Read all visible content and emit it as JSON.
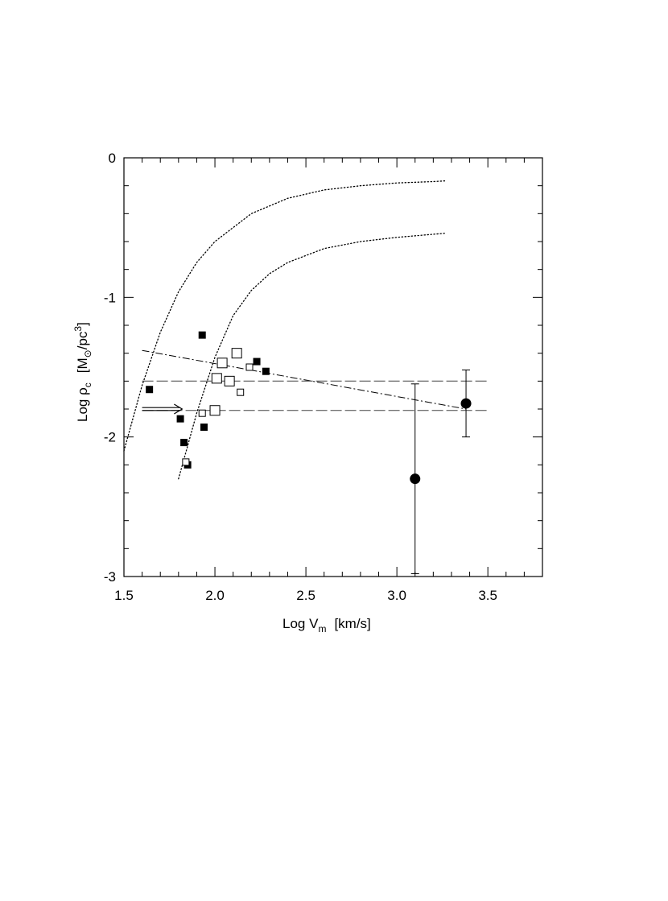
{
  "chart_data": {
    "type": "scatter",
    "title": "",
    "xlabel": {
      "main": "Log V",
      "sub": "m",
      "unit": "[km/s]"
    },
    "ylabel": {
      "main": "Log ρ",
      "sub": "c",
      "unit_open": "[M",
      "unit_sub": "⊙",
      "unit_mid": "/pc",
      "unit_sup": "3",
      "unit_close": "]"
    },
    "xlim": [
      1.5,
      3.8
    ],
    "ylim": [
      -3,
      0
    ],
    "x_ticks": [
      1.5,
      2.0,
      2.5,
      3.0,
      3.5
    ],
    "x_tick_labels": [
      "1.5",
      "2.0",
      "2.5",
      "3.0",
      "3.5"
    ],
    "y_ticks": [
      0,
      -1,
      -2,
      -3
    ],
    "y_tick_labels": [
      "0",
      "-1",
      "-2",
      "-3"
    ],
    "grid": false,
    "series": [
      {
        "marker": "filled-square",
        "points": [
          {
            "x": 1.64,
            "y": -1.66
          },
          {
            "x": 1.81,
            "y": -1.87
          },
          {
            "x": 1.83,
            "y": -2.04
          },
          {
            "x": 1.85,
            "y": -2.2
          },
          {
            "x": 1.93,
            "y": -1.27
          },
          {
            "x": 1.94,
            "y": -1.93
          },
          {
            "x": 2.23,
            "y": -1.46
          },
          {
            "x": 2.28,
            "y": -1.53
          }
        ]
      },
      {
        "marker": "open-square-large",
        "points": [
          {
            "x": 2.01,
            "y": -1.58
          },
          {
            "x": 2.0,
            "y": -1.81
          },
          {
            "x": 2.04,
            "y": -1.47
          },
          {
            "x": 2.08,
            "y": -1.6
          },
          {
            "x": 2.12,
            "y": -1.4
          }
        ]
      },
      {
        "marker": "open-square-small",
        "points": [
          {
            "x": 1.93,
            "y": -1.83
          },
          {
            "x": 2.19,
            "y": -1.5
          },
          {
            "x": 2.14,
            "y": -1.68
          },
          {
            "x": 1.84,
            "y": -2.18
          }
        ]
      },
      {
        "marker": "filled-circle-errorbar",
        "points": [
          {
            "x": 3.1,
            "y": -2.3,
            "yerr_lo": -2.98,
            "yerr_hi": -1.62
          },
          {
            "x": 3.38,
            "y": -1.76,
            "yerr_lo": -2.0,
            "yerr_hi": -1.52
          }
        ]
      }
    ],
    "lines": [
      {
        "style": "dotted",
        "x": [
          1.5,
          1.6,
          1.7,
          1.8,
          1.9,
          2.0,
          2.2,
          2.4,
          2.6,
          2.8,
          3.0,
          3.2,
          3.27
        ],
        "y": [
          -2.1,
          -1.63,
          -1.25,
          -0.96,
          -0.75,
          -0.6,
          -0.4,
          -0.29,
          -0.23,
          -0.2,
          -0.18,
          -0.17,
          -0.165
        ]
      },
      {
        "style": "dotted",
        "x": [
          1.8,
          1.9,
          2.0,
          2.1,
          2.2,
          2.3,
          2.4,
          2.6,
          2.8,
          3.0,
          3.27
        ],
        "y": [
          -2.3,
          -1.83,
          -1.43,
          -1.13,
          -0.95,
          -0.83,
          -0.75,
          -0.65,
          -0.6,
          -0.57,
          -0.54
        ]
      },
      {
        "style": "dash-dot",
        "x": [
          1.6,
          3.38
        ],
        "y": [
          -1.38,
          -1.8
        ]
      },
      {
        "style": "long-dash",
        "x": [
          1.6,
          3.5
        ],
        "y": [
          -1.6,
          -1.6
        ]
      },
      {
        "style": "long-dash",
        "x": [
          1.6,
          3.5
        ],
        "y": [
          -1.81,
          -1.81
        ]
      }
    ],
    "arrow": {
      "x_from": 1.6,
      "x_to": 1.82,
      "y": -1.8,
      "style": "double-shaft right"
    }
  }
}
